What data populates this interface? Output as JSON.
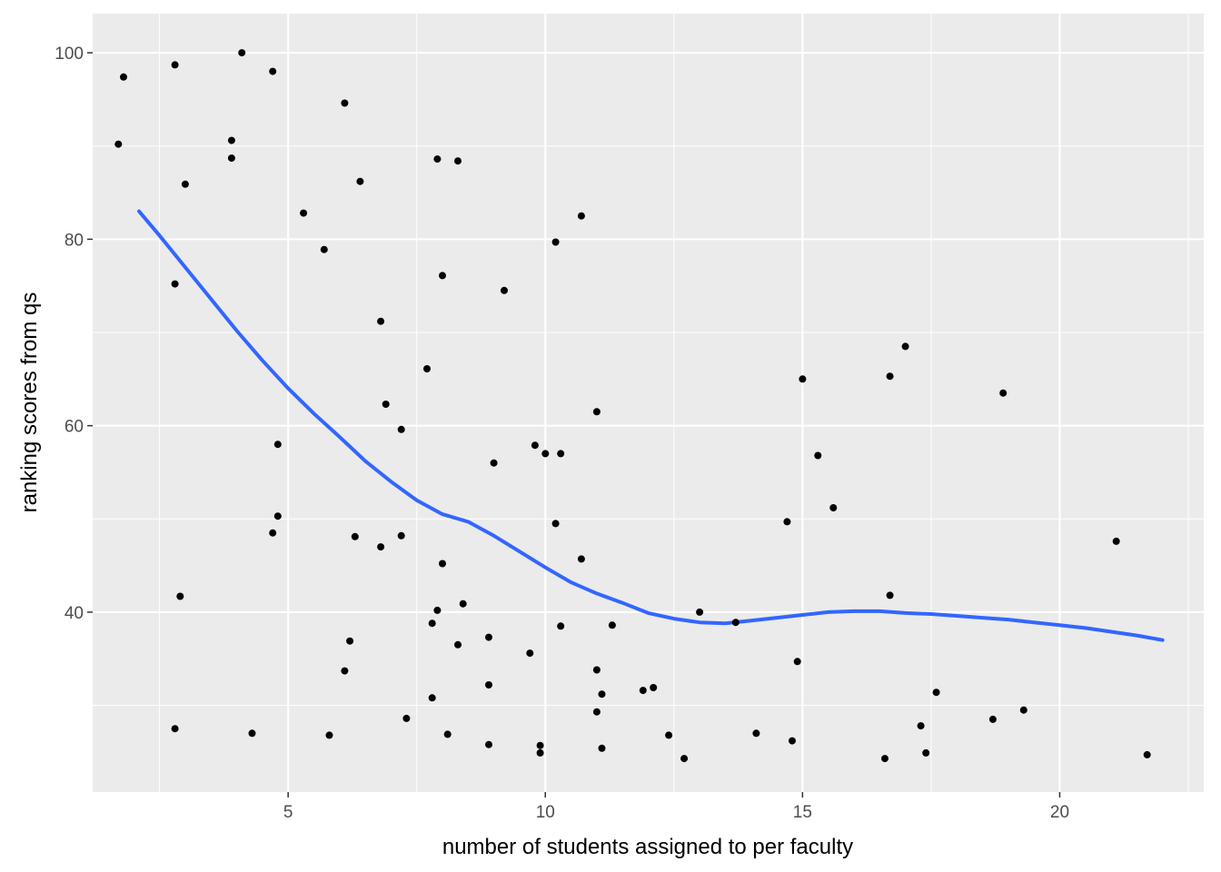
{
  "chart_data": {
    "type": "scatter",
    "title": "",
    "xlabel": "number of students assigned to per faculty",
    "ylabel": "ranking scores from qs",
    "xlim": [
      1.2,
      22.8
    ],
    "ylim": [
      20.7,
      104.2
    ],
    "x_ticks": [
      5,
      10,
      15,
      20
    ],
    "x_tick_labels": [
      "5",
      "10",
      "15",
      "20"
    ],
    "y_ticks": [
      40,
      60,
      80,
      100
    ],
    "y_tick_labels": [
      "40",
      "60",
      "80",
      "100"
    ],
    "x_minor_ticks": [
      2.5,
      7.5,
      12.5,
      17.5,
      22.5
    ],
    "y_minor_ticks": [
      30,
      50,
      70,
      90
    ],
    "grid": true,
    "legend": "none",
    "colors": {
      "panel": "#ebebeb",
      "grid": "#ffffff",
      "point": "#000000",
      "smooth": "#3366ff"
    },
    "points": [
      [
        1.7,
        90.2
      ],
      [
        1.8,
        97.4
      ],
      [
        2.8,
        98.7
      ],
      [
        3.0,
        85.9
      ],
      [
        2.8,
        75.2
      ],
      [
        2.9,
        41.7
      ],
      [
        2.8,
        27.5
      ],
      [
        3.9,
        90.6
      ],
      [
        3.9,
        88.7
      ],
      [
        4.1,
        100.0
      ],
      [
        4.7,
        98.0
      ],
      [
        4.3,
        27.0
      ],
      [
        4.8,
        58.0
      ],
      [
        4.8,
        50.3
      ],
      [
        4.7,
        48.5
      ],
      [
        5.3,
        82.8
      ],
      [
        5.7,
        78.9
      ],
      [
        6.1,
        94.6
      ],
      [
        6.4,
        86.2
      ],
      [
        6.2,
        36.9
      ],
      [
        6.1,
        33.7
      ],
      [
        6.3,
        48.1
      ],
      [
        5.8,
        26.8
      ],
      [
        6.8,
        71.2
      ],
      [
        6.9,
        62.3
      ],
      [
        7.2,
        59.6
      ],
      [
        6.8,
        47.0
      ],
      [
        7.2,
        48.2
      ],
      [
        7.3,
        28.6
      ],
      [
        7.7,
        66.1
      ],
      [
        7.9,
        88.6
      ],
      [
        8.0,
        76.1
      ],
      [
        8.3,
        88.4
      ],
      [
        8.0,
        45.2
      ],
      [
        7.9,
        40.2
      ],
      [
        7.8,
        38.8
      ],
      [
        8.4,
        40.9
      ],
      [
        8.3,
        36.5
      ],
      [
        7.8,
        30.8
      ],
      [
        8.1,
        26.9
      ],
      [
        8.9,
        37.3
      ],
      [
        8.9,
        32.2
      ],
      [
        8.9,
        25.8
      ],
      [
        9.2,
        74.5
      ],
      [
        9.0,
        56.0
      ],
      [
        9.8,
        57.9
      ],
      [
        10.0,
        57.0
      ],
      [
        10.3,
        57.0
      ],
      [
        10.2,
        79.7
      ],
      [
        10.7,
        82.5
      ],
      [
        11.0,
        61.5
      ],
      [
        10.2,
        49.5
      ],
      [
        10.7,
        45.7
      ],
      [
        9.7,
        35.6
      ],
      [
        10.3,
        38.5
      ],
      [
        9.9,
        25.7
      ],
      [
        9.9,
        24.9
      ],
      [
        11.0,
        33.8
      ],
      [
        11.1,
        31.2
      ],
      [
        11.0,
        29.3
      ],
      [
        11.1,
        25.4
      ],
      [
        11.3,
        38.6
      ],
      [
        11.9,
        31.6
      ],
      [
        12.1,
        31.9
      ],
      [
        12.4,
        26.8
      ],
      [
        12.7,
        24.3
      ],
      [
        13.0,
        40.0
      ],
      [
        13.7,
        38.9
      ],
      [
        14.1,
        27.0
      ],
      [
        14.7,
        49.7
      ],
      [
        14.8,
        26.2
      ],
      [
        14.9,
        34.7
      ],
      [
        15.0,
        65.0
      ],
      [
        15.3,
        56.8
      ],
      [
        15.6,
        51.2
      ],
      [
        16.7,
        65.3
      ],
      [
        17.0,
        68.5
      ],
      [
        16.7,
        41.8
      ],
      [
        16.6,
        24.3
      ],
      [
        17.3,
        27.8
      ],
      [
        17.4,
        24.9
      ],
      [
        17.6,
        31.4
      ],
      [
        18.7,
        28.5
      ],
      [
        18.9,
        63.5
      ],
      [
        19.3,
        29.5
      ],
      [
        21.1,
        47.6
      ],
      [
        21.7,
        24.7
      ]
    ],
    "smooth": [
      [
        2.1,
        83.0
      ],
      [
        2.5,
        80.4
      ],
      [
        3.0,
        77.0
      ],
      [
        3.5,
        73.6
      ],
      [
        4.0,
        70.2
      ],
      [
        4.5,
        67.0
      ],
      [
        5.0,
        64.0
      ],
      [
        5.5,
        61.3
      ],
      [
        6.0,
        58.8
      ],
      [
        6.5,
        56.2
      ],
      [
        7.0,
        54.0
      ],
      [
        7.5,
        52.0
      ],
      [
        8.0,
        50.5
      ],
      [
        8.5,
        49.7
      ],
      [
        9.0,
        48.2
      ],
      [
        9.5,
        46.5
      ],
      [
        10.0,
        44.8
      ],
      [
        10.5,
        43.2
      ],
      [
        11.0,
        42.0
      ],
      [
        11.5,
        41.0
      ],
      [
        12.0,
        39.9
      ],
      [
        12.5,
        39.3
      ],
      [
        13.0,
        38.9
      ],
      [
        13.5,
        38.8
      ],
      [
        14.0,
        39.1
      ],
      [
        14.5,
        39.4
      ],
      [
        15.0,
        39.7
      ],
      [
        15.5,
        40.0
      ],
      [
        16.0,
        40.1
      ],
      [
        16.5,
        40.1
      ],
      [
        17.0,
        39.9
      ],
      [
        17.5,
        39.8
      ],
      [
        18.0,
        39.6
      ],
      [
        18.5,
        39.4
      ],
      [
        19.0,
        39.2
      ],
      [
        19.5,
        38.9
      ],
      [
        20.0,
        38.6
      ],
      [
        20.5,
        38.3
      ],
      [
        21.0,
        37.9
      ],
      [
        21.5,
        37.5
      ],
      [
        22.0,
        37.0
      ]
    ]
  }
}
